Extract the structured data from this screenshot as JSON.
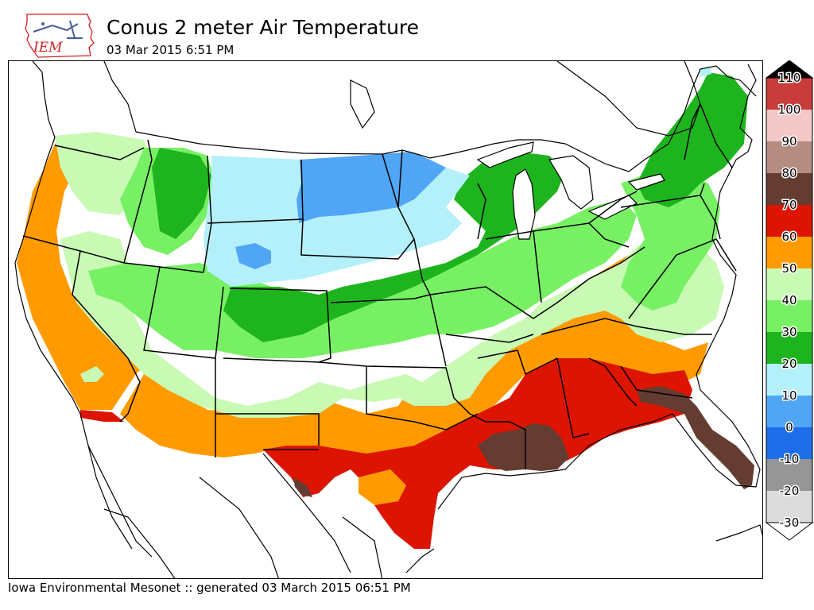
{
  "header": {
    "logo_text": "IEM",
    "title": "Conus 2 meter Air Temperature",
    "subtitle": "03 Mar 2015 6:51 PM"
  },
  "footer": {
    "credit": "Iowa Environmental Mesonet :: generated 03 March 2015 06:51 PM"
  },
  "legend": {
    "bands": [
      {
        "label": "110",
        "color": "#000000"
      },
      {
        "label": "100",
        "color": "#c83c3c"
      },
      {
        "label": "90",
        "color": "#f5c8c8"
      },
      {
        "label": "80",
        "color": "#b48c82"
      },
      {
        "label": "70",
        "color": "#643c32"
      },
      {
        "label": "60",
        "color": "#dc1400"
      },
      {
        "label": "50",
        "color": "#ff9b00"
      },
      {
        "label": "40",
        "color": "#c8fab4"
      },
      {
        "label": "30",
        "color": "#78f064"
      },
      {
        "label": "20",
        "color": "#1eb41e"
      },
      {
        "label": "10",
        "color": "#b4f0fa"
      },
      {
        "label": "0",
        "color": "#50a5f5"
      },
      {
        "label": "-10",
        "color": "#1e6eeb"
      },
      {
        "label": "-20",
        "color": "#969696"
      },
      {
        "label": "-30",
        "color": "#dcdcdc"
      }
    ]
  },
  "colors": {
    "t70": "#643c32",
    "t60": "#dc1400",
    "t50": "#ff9b00",
    "t40": "#c8fab4",
    "t30": "#78f064",
    "t20": "#1eb41e",
    "t10": "#b4f0fa",
    "t0": "#50a5f5"
  }
}
